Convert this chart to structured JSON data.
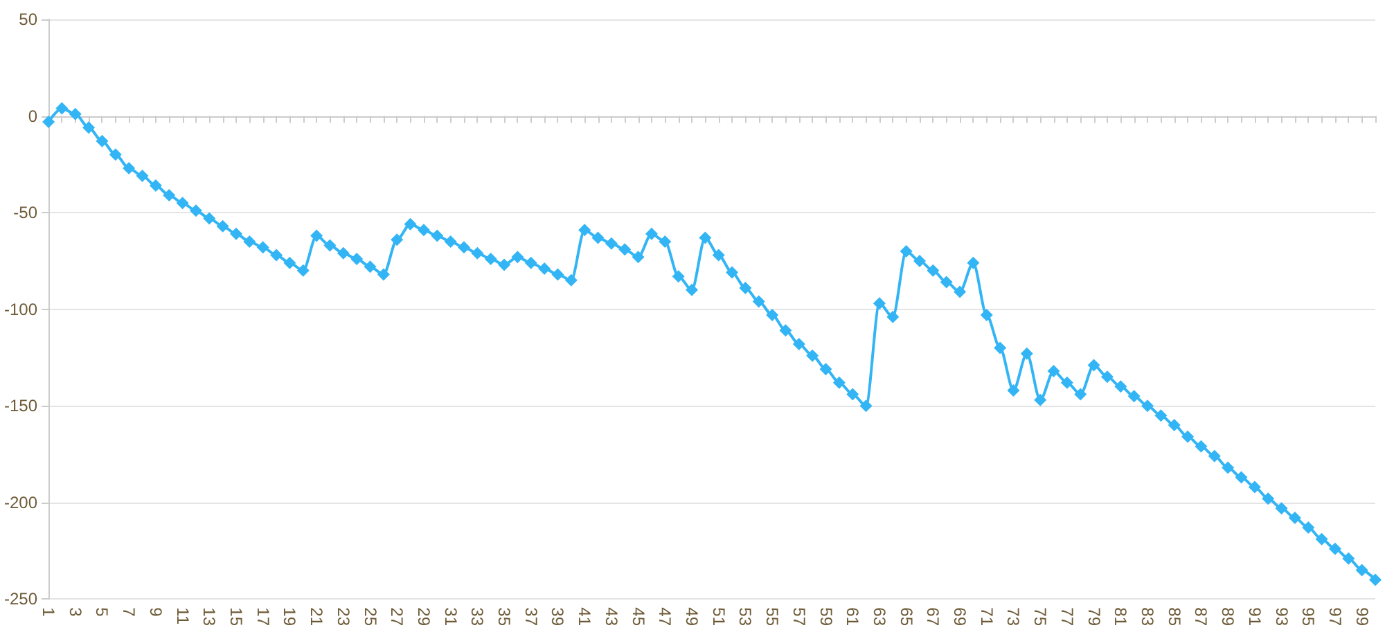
{
  "chart_data": {
    "type": "line",
    "categories": [
      "1",
      null,
      "3",
      null,
      "5",
      null,
      "7",
      null,
      "9",
      null,
      "11",
      null,
      "13",
      null,
      "15",
      null,
      "17",
      null,
      "19",
      null,
      "21",
      null,
      "23",
      null,
      "25",
      null,
      "27",
      null,
      "29",
      null,
      "31",
      null,
      "33",
      null,
      "35",
      null,
      "37",
      null,
      "39",
      null,
      "41",
      null,
      "43",
      null,
      "45",
      null,
      "47",
      null,
      "49",
      null,
      "51",
      null,
      "53",
      null,
      "55",
      null,
      "57",
      null,
      "59",
      null,
      "61",
      null,
      "63",
      null,
      "65",
      null,
      "67",
      null,
      "69",
      null,
      "71",
      null,
      "73",
      null,
      "75",
      null,
      "77",
      null,
      "79",
      null,
      "81",
      null,
      "83",
      null,
      "85",
      null,
      "87",
      null,
      "89",
      null,
      "91",
      null,
      "93",
      null,
      "95",
      null,
      "97",
      null,
      "99",
      null
    ],
    "series": [
      {
        "color": "#33b5f5",
        "values": [
          -3,
          4,
          1,
          -6,
          -13,
          -20,
          -27,
          -31,
          -36,
          -41,
          -45,
          -49,
          -53,
          -57,
          -61,
          -65,
          -68,
          -72,
          -76,
          -80,
          -62,
          -67,
          -71,
          -74,
          -78,
          -82,
          -64,
          -56,
          -59,
          -62,
          -65,
          -68,
          -71,
          -74,
          -77,
          -73,
          -76,
          -79,
          -82,
          -85,
          -59,
          -63,
          -66,
          -69,
          -73,
          -61,
          -65,
          -83,
          -90,
          -63,
          -72,
          -81,
          -89,
          -96,
          -103,
          -111,
          -118,
          -124,
          -131,
          -138,
          -144,
          -150,
          -97,
          -104,
          -70,
          -75,
          -80,
          -86,
          -91,
          -76,
          -103,
          -120,
          -142,
          -123,
          -147,
          -132,
          -138,
          -144,
          -129,
          -135,
          -140,
          -145,
          -150,
          -155,
          -160,
          -166,
          -171,
          -176,
          -182,
          -187,
          -192,
          -198,
          -203,
          -208,
          -213,
          -219,
          -224,
          -229,
          -235,
          -240
        ]
      }
    ],
    "ylim": [
      -250,
      50
    ],
    "yticks": [
      -250,
      -200,
      -150,
      -100,
      -50,
      0,
      50
    ],
    "grid": "y",
    "marker": "diamond",
    "line_style": "solid"
  }
}
